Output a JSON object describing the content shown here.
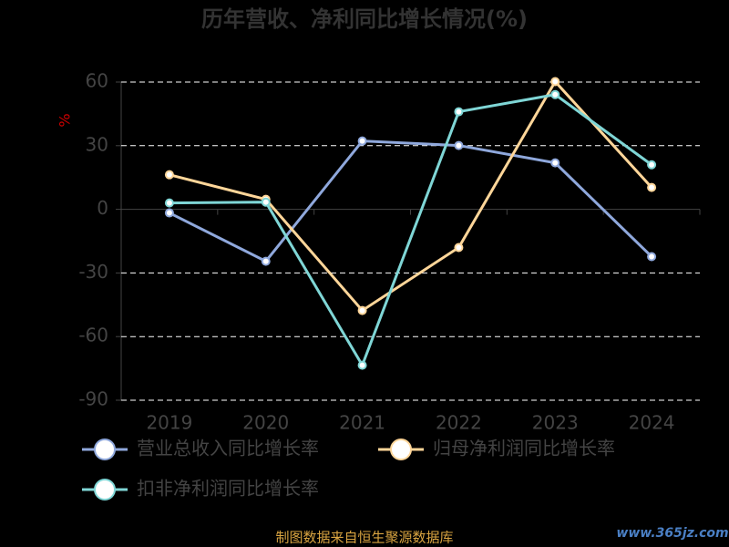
{
  "chart_data": {
    "type": "line",
    "title": "历年营收、净利同比增长情况(%)",
    "y_label": "%",
    "categories": [
      "2019",
      "2020",
      "2021",
      "2022",
      "2023",
      "2024"
    ],
    "series": [
      {
        "name": "营业总收入同比增长率",
        "color": "#8fa8dc",
        "values": [
          -1.7,
          -24.5,
          32.2,
          30.1,
          21.9,
          -22.3
        ]
      },
      {
        "name": "归母净利润同比增长率",
        "color": "#ffd699",
        "values": [
          16.3,
          4.7,
          -47.7,
          -18,
          60.2,
          10.3
        ]
      },
      {
        "name": "扣非净利润同比增长率",
        "color": "#7fd6d6",
        "values": [
          3,
          3.4,
          -73.5,
          46,
          54.1,
          21
        ]
      }
    ],
    "ylim": [
      -90,
      60
    ],
    "yticks": [
      -90,
      -60,
      -30,
      0,
      30,
      60
    ],
    "grid": true,
    "source": "制图数据来自恒生聚源数据库",
    "watermark": "www.365jz.com"
  }
}
